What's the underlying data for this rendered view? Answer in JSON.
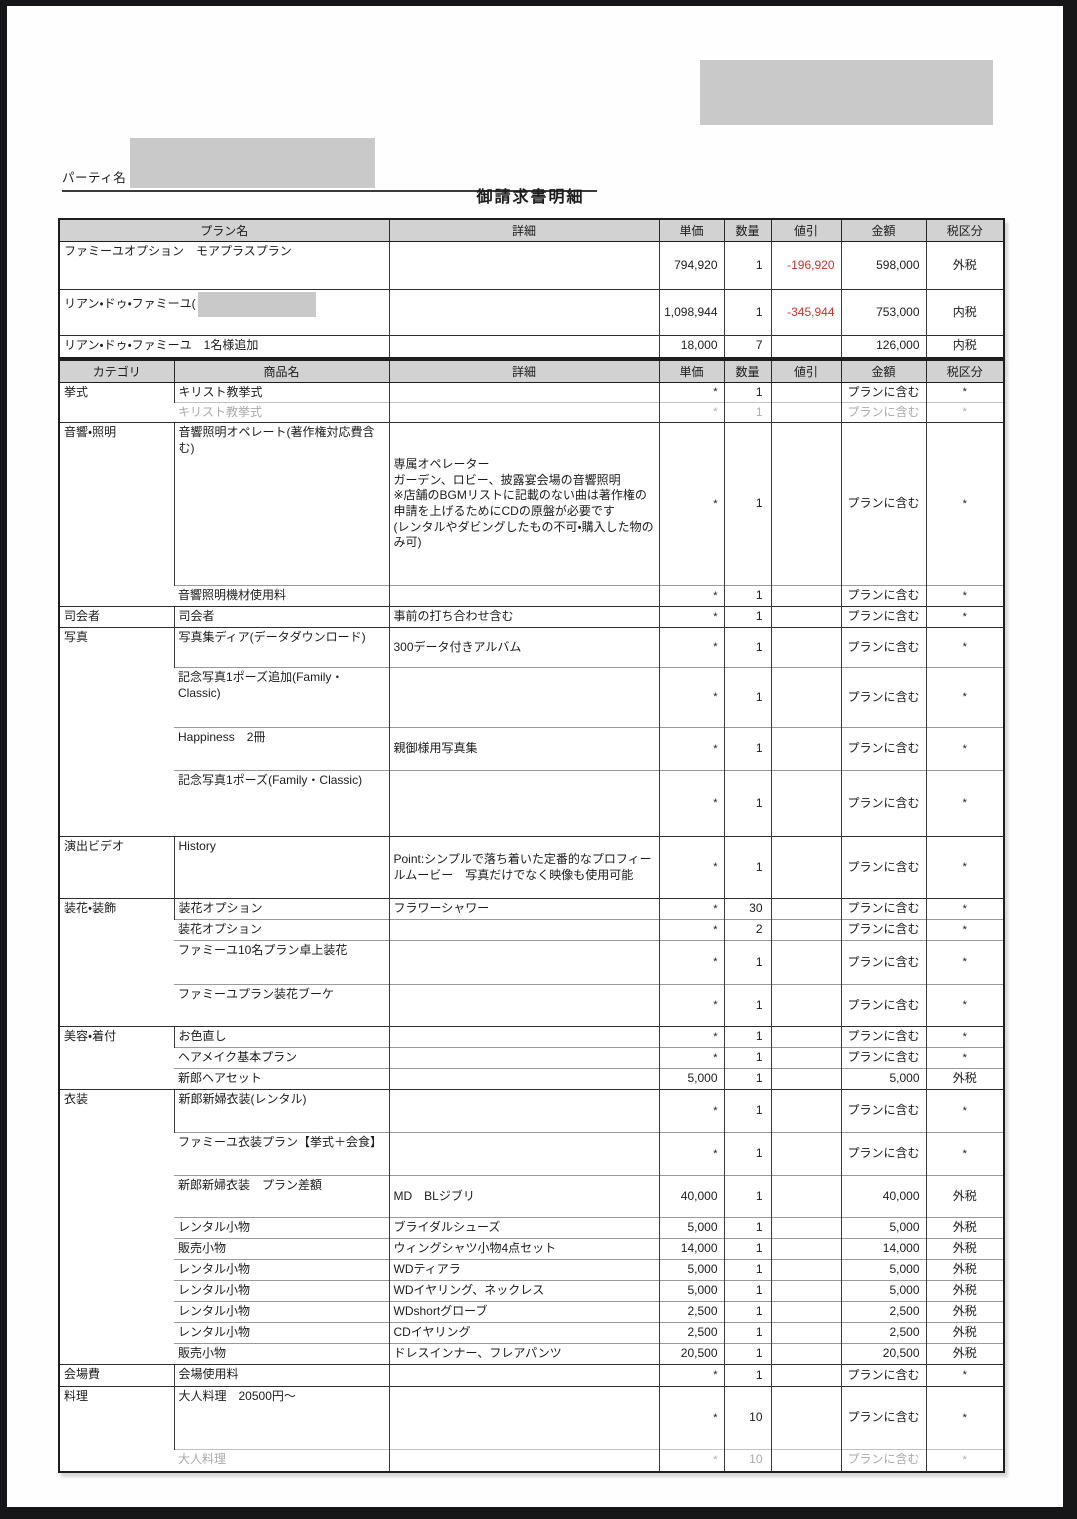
{
  "page": {
    "party_label": "パーティ名",
    "title": "御請求書明細"
  },
  "colors": {
    "negative_amount": "#cc3328",
    "table_header_bg": "#d2d2d2",
    "redaction_gray": "#c9c9c9"
  },
  "plan_table": {
    "headers": [
      "プラン名",
      "詳細",
      "単価",
      "数量",
      "値引",
      "金額",
      "税区分"
    ],
    "rows": [
      {
        "plan": "ファミーユオプション　モアプラスプラン",
        "detail": "",
        "unit_price": "794,920",
        "qty": "1",
        "discount": "-196,920",
        "amount": "598,000",
        "tax": "外税",
        "redacted": false
      },
      {
        "plan": "リアン・ドゥ・ファミーユ(",
        "detail": "",
        "unit_price": "1,098,944",
        "qty": "1",
        "discount": "-345,944",
        "amount": "753,000",
        "tax": "内税",
        "redacted": true
      },
      {
        "plan": "リアン・ドゥ・ファミーユ　1名様追加",
        "detail": "",
        "unit_price": "18,000",
        "qty": "7",
        "discount": "",
        "amount": "126,000",
        "tax": "内税",
        "redacted": false
      }
    ]
  },
  "item_table": {
    "headers": [
      "カテゴリ",
      "商品名",
      "詳細",
      "単価",
      "数量",
      "値引",
      "金額",
      "税区分"
    ],
    "rows": [
      {
        "category": "挙式",
        "category_rowspan": 2,
        "name": "キリスト教挙式",
        "detail": "",
        "unit_price": "*",
        "qty": "1",
        "discount": "",
        "amount": "プランに含む",
        "tax": "*"
      },
      {
        "muted": true,
        "name": "キリスト教挙式",
        "detail": "",
        "unit_price": "*",
        "qty": "1",
        "discount": "",
        "amount": "プランに含む",
        "tax": "*"
      },
      {
        "category": "音響・照明",
        "category_rowspan": 2,
        "name": "音響照明オペレート(著作権対応費含む)",
        "detail": "専属オペレーター\nガーデン、ロビー、披露宴会場の音響照明\n※店舗のBGMリストに記載のない曲は著作権の申請を上げるためにCDの原盤が必要です\n(レンタルやダビングしたもの不可・購入した物のみ可)",
        "unit_price": "*",
        "qty": "1",
        "discount": "",
        "amount": "プランに含む",
        "tax": "*"
      },
      {
        "name": "音響照明機材使用料",
        "detail": "",
        "unit_price": "*",
        "qty": "1",
        "discount": "",
        "amount": "プランに含む",
        "tax": "*"
      },
      {
        "category": "司会者",
        "category_rowspan": 1,
        "name": "司会者",
        "detail": "事前の打ち合わせ含む",
        "unit_price": "*",
        "qty": "1",
        "discount": "",
        "amount": "プランに含む",
        "tax": "*"
      },
      {
        "category": "写真",
        "category_rowspan": 4,
        "name": "写真集ディア(データダウンロード)",
        "detail": "300データ付きアルバム",
        "unit_price": "*",
        "qty": "1",
        "discount": "",
        "amount": "プランに含む",
        "tax": "*"
      },
      {
        "name": "記念写真1ポーズ追加(Family・Classic)",
        "detail": "",
        "unit_price": "*",
        "qty": "1",
        "discount": "",
        "amount": "プランに含む",
        "tax": "*"
      },
      {
        "name": "Happiness　2冊",
        "detail": "親御様用写真集",
        "unit_price": "*",
        "qty": "1",
        "discount": "",
        "amount": "プランに含む",
        "tax": "*"
      },
      {
        "name": "記念写真1ポーズ(Family・Classic)",
        "detail": "",
        "unit_price": "*",
        "qty": "1",
        "discount": "",
        "amount": "プランに含む",
        "tax": "*"
      },
      {
        "category": "演出ビデオ",
        "category_rowspan": 1,
        "name": "History",
        "detail": "Point:シンプルで落ち着いた定番的なプロフィールムービー　写真だけでなく映像も使用可能",
        "unit_price": "*",
        "qty": "1",
        "discount": "",
        "amount": "プランに含む",
        "tax": "*"
      },
      {
        "category": "装花・装飾",
        "category_rowspan": 4,
        "name": "装花オプション",
        "detail": "フラワーシャワー",
        "unit_price": "*",
        "qty": "30",
        "discount": "",
        "amount": "プランに含む",
        "tax": "*"
      },
      {
        "name": "装花オプション",
        "detail": "",
        "unit_price": "*",
        "qty": "2",
        "discount": "",
        "amount": "プランに含む",
        "tax": "*"
      },
      {
        "name": "ファミーユ10名プラン卓上装花",
        "detail": "",
        "unit_price": "*",
        "qty": "1",
        "discount": "",
        "amount": "プランに含む",
        "tax": "*"
      },
      {
        "name": "ファミーユプラン装花ブーケ",
        "detail": "",
        "unit_price": "*",
        "qty": "1",
        "discount": "",
        "amount": "プランに含む",
        "tax": "*"
      },
      {
        "category": "美容・着付",
        "category_rowspan": 3,
        "name": "お色直し",
        "detail": "",
        "unit_price": "*",
        "qty": "1",
        "discount": "",
        "amount": "プランに含む",
        "tax": "*"
      },
      {
        "name": "ヘアメイク基本プラン",
        "detail": "",
        "unit_price": "*",
        "qty": "1",
        "discount": "",
        "amount": "プランに含む",
        "tax": "*"
      },
      {
        "name": "新郎ヘアセット",
        "detail": "",
        "unit_price": "5,000",
        "qty": "1",
        "discount": "",
        "amount": "5,000",
        "tax": "外税"
      },
      {
        "category": "衣装",
        "category_rowspan": 10,
        "name": "新郎新婦衣装(レンタル)",
        "detail": "",
        "unit_price": "*",
        "qty": "1",
        "discount": "",
        "amount": "プランに含む",
        "tax": "*"
      },
      {
        "name": "ファミーユ衣装プラン【挙式＋会食】",
        "detail": "",
        "unit_price": "*",
        "qty": "1",
        "discount": "",
        "amount": "プランに含む",
        "tax": "*"
      },
      {
        "name": "新郎新婦衣装　プラン差額",
        "detail": "MD　BLジブリ",
        "unit_price": "40,000",
        "qty": "1",
        "discount": "",
        "amount": "40,000",
        "tax": "外税"
      },
      {
        "name": "レンタル小物",
        "detail": "ブライダルシューズ",
        "unit_price": "5,000",
        "qty": "1",
        "discount": "",
        "amount": "5,000",
        "tax": "外税"
      },
      {
        "name": "販売小物",
        "detail": "ウィングシャツ小物4点セット",
        "unit_price": "14,000",
        "qty": "1",
        "discount": "",
        "amount": "14,000",
        "tax": "外税"
      },
      {
        "name": "レンタル小物",
        "detail": "WDティアラ",
        "unit_price": "5,000",
        "qty": "1",
        "discount": "",
        "amount": "5,000",
        "tax": "外税"
      },
      {
        "name": "レンタル小物",
        "detail": "WDイヤリング、ネックレス",
        "unit_price": "5,000",
        "qty": "1",
        "discount": "",
        "amount": "5,000",
        "tax": "外税"
      },
      {
        "name": "レンタル小物",
        "detail": "WDshortグローブ",
        "unit_price": "2,500",
        "qty": "1",
        "discount": "",
        "amount": "2,500",
        "tax": "外税"
      },
      {
        "name": "レンタル小物",
        "detail": "CDイヤリング",
        "unit_price": "2,500",
        "qty": "1",
        "discount": "",
        "amount": "2,500",
        "tax": "外税"
      },
      {
        "name": "販売小物",
        "detail": "ドレスインナー、フレアパンツ",
        "unit_price": "20,500",
        "qty": "1",
        "discount": "",
        "amount": "20,500",
        "tax": "外税"
      },
      {
        "category": "会場費",
        "category_rowspan": 1,
        "name": "会場使用料",
        "detail": "",
        "unit_price": "*",
        "qty": "1",
        "discount": "",
        "amount": "プランに含む",
        "tax": "*"
      },
      {
        "category": "料理",
        "category_rowspan": 2,
        "name": "大人料理　20500円～",
        "detail": "",
        "unit_price": "*",
        "qty": "10",
        "discount": "",
        "amount": "プランに含む",
        "tax": "*"
      },
      {
        "muted": true,
        "name": "大人料理",
        "detail": "",
        "unit_price": "*",
        "qty": "10",
        "discount": "",
        "amount": "プランに含む",
        "tax": "*"
      }
    ]
  }
}
